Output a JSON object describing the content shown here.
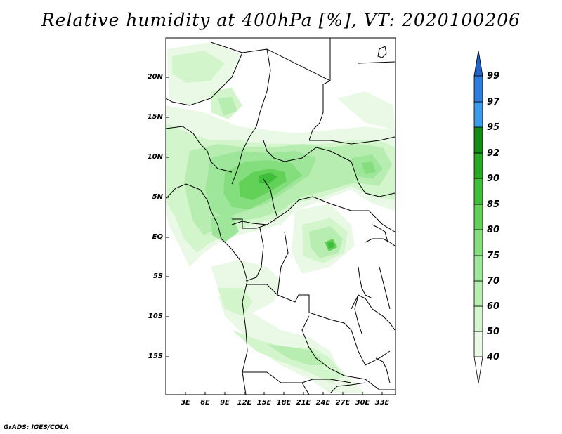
{
  "title": "Relative humidity at 400hPa [%], VT: 2020100206",
  "credit": "GrADS: IGES/COLA",
  "lat_labels": [
    "20N",
    "15N",
    "10N",
    "5N",
    "EQ",
    "5S",
    "10S",
    "15S"
  ],
  "lon_labels": [
    "3E",
    "6E",
    "9E",
    "12E",
    "15E",
    "18E",
    "21E",
    "24E",
    "27E",
    "30E",
    "33E"
  ],
  "colorbar": {
    "levels": [
      "40",
      "50",
      "60",
      "70",
      "75",
      "80",
      "85",
      "90",
      "92",
      "95",
      "97",
      "99"
    ],
    "colors": {
      "rh_40_50": "#eaf9e6",
      "rh_50_60": "#d2f5cc",
      "rh_60_70": "#b7edb0",
      "rh_70_75": "#9ee699",
      "rh_75_80": "#84de7e",
      "rh_80_85": "#62d158",
      "rh_85_90": "#3fbe3a",
      "rh_90_92": "#27a924",
      "rh_92_95": "#138c14",
      "rh_95_97": "#3b9bea",
      "rh_97_99": "#2d7ede",
      "rh_99_up": "#2262c4"
    }
  }
}
